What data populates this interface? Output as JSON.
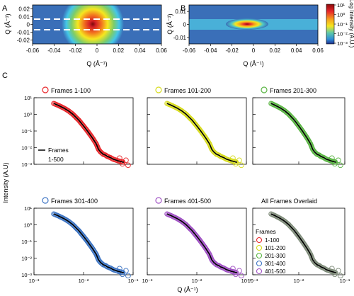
{
  "panel_labels": {
    "a": "A",
    "b": "B",
    "c": "C"
  },
  "detector_images": {
    "xlabel": "Q (Å⁻¹)",
    "ylabel": "Q (Å⁻¹)",
    "x_ticks": [
      "-0.06",
      "-0.04",
      "-0.02",
      "0",
      "0.02",
      "0.04",
      "0.06"
    ],
    "y_ticks": [
      "0.02",
      "0.01",
      "0",
      "-0.01",
      "-0.02"
    ],
    "y_ticks_b": [
      "0.01",
      "0",
      "-0.01"
    ],
    "colorbar": {
      "label": "Log Intensity (A.U.)",
      "ticks": [
        "10¹",
        "10⁰",
        "10⁻¹",
        "10⁻²",
        "10⁻³"
      ]
    },
    "colors": {
      "center": "#7a0a0a",
      "ring_red": "#e8262b",
      "ring_yellow": "#f6e61f",
      "ring_cyan": "#44c6e8",
      "background": "#3a6fb8",
      "dashed_lines": "#ffffff"
    }
  },
  "chart_data": {
    "type": "scatter",
    "xscale": "log",
    "yscale": "log",
    "xlim": [
      0.001,
      0.1
    ],
    "ylim": [
      0.001,
      10
    ],
    "x_ticks": [
      "10⁻³",
      "10⁻²",
      "10⁻¹"
    ],
    "y_ticks": [
      "10¹",
      "10⁰",
      "10⁻¹",
      "10⁻²",
      "10⁻³"
    ],
    "xlabel": "Q (Å⁻¹)",
    "ylabel": "Intensity (A.U)",
    "fit_legend": [
      "Frames",
      "1-500"
    ],
    "fit_color": "#000000",
    "curve_x": [
      0.0025,
      0.003,
      0.004,
      0.005,
      0.006,
      0.008,
      0.01,
      0.012,
      0.015,
      0.018,
      0.02,
      0.022,
      0.025,
      0.028,
      0.03,
      0.035,
      0.04,
      0.045,
      0.05,
      0.055,
      0.06,
      0.065
    ],
    "curve_y": [
      4.5,
      3.6,
      2.4,
      1.6,
      1.05,
      0.45,
      0.2,
      0.1,
      0.04,
      0.017,
      0.008,
      0.0055,
      0.004,
      0.0035,
      0.003,
      0.0025,
      0.002,
      0.0018,
      0.0016,
      0.0015,
      0.0014,
      0.0013
    ],
    "series": [
      {
        "name": "Frames 1-100",
        "color": "#e8272b"
      },
      {
        "name": "Frames 101-200",
        "color": "#d7dc1e"
      },
      {
        "name": "Frames 201-300",
        "color": "#5bb544"
      },
      {
        "name": "Frames 301-400",
        "color": "#3d74c3"
      },
      {
        "name": "Frames 401-500",
        "color": "#a052c4"
      },
      {
        "name": "All Frames Overlaid",
        "color": "#7f8c7a"
      }
    ],
    "overlay_legend": {
      "title": "Frames",
      "items": [
        {
          "label": "1-100",
          "color": "#e8272b"
        },
        {
          "label": "101-200",
          "color": "#d7dc1e"
        },
        {
          "label": "201-300",
          "color": "#5bb544"
        },
        {
          "label": "301-400",
          "color": "#3d74c3"
        },
        {
          "label": "401-500",
          "color": "#a052c4"
        }
      ]
    }
  }
}
